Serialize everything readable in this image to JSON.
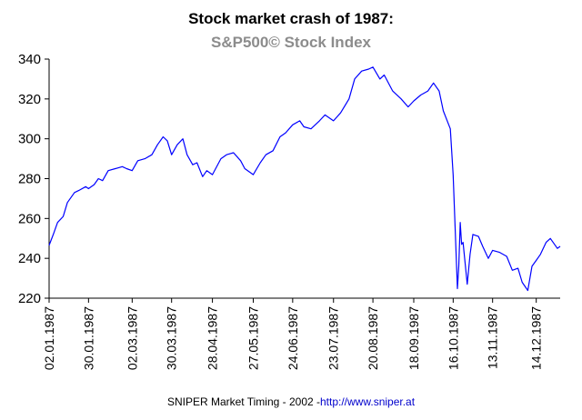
{
  "chart_data": {
    "type": "line",
    "title": "Stock market crash of 1987:",
    "subtitle": "S&P500© Stock Index",
    "xlabel": "",
    "ylabel": "",
    "ylim": [
      220,
      340
    ],
    "yticks": [
      220,
      240,
      260,
      280,
      300,
      320,
      340
    ],
    "xlim": [
      "1987-01-02",
      "1987-12-31"
    ],
    "xticks": [
      {
        "date": "1987-01-02",
        "label": "02.01.1987"
      },
      {
        "date": "1987-01-30",
        "label": "30.01.1987"
      },
      {
        "date": "1987-03-02",
        "label": "02.03.1987"
      },
      {
        "date": "1987-03-30",
        "label": "30.03.1987"
      },
      {
        "date": "1987-04-28",
        "label": "28.04.1987"
      },
      {
        "date": "1987-05-27",
        "label": "27.05.1987"
      },
      {
        "date": "1987-06-24",
        "label": "24.06.1987"
      },
      {
        "date": "1987-07-23",
        "label": "23.07.1987"
      },
      {
        "date": "1987-08-20",
        "label": "20.08.1987"
      },
      {
        "date": "1987-09-18",
        "label": "18.09.1987"
      },
      {
        "date": "1987-10-16",
        "label": "16.10.1987"
      },
      {
        "date": "1987-11-13",
        "label": "13.11.1987"
      },
      {
        "date": "1987-12-14",
        "label": "14.12.1987"
      }
    ],
    "grid": false,
    "legend": "none",
    "series": [
      {
        "color": "#0000ff",
        "x": [
          "1987-01-02",
          "1987-01-05",
          "1987-01-08",
          "1987-01-12",
          "1987-01-15",
          "1987-01-20",
          "1987-01-23",
          "1987-01-28",
          "1987-01-30",
          "1987-02-03",
          "1987-02-06",
          "1987-02-09",
          "1987-02-13",
          "1987-02-18",
          "1987-02-23",
          "1987-02-26",
          "1987-03-02",
          "1987-03-06",
          "1987-03-11",
          "1987-03-16",
          "1987-03-20",
          "1987-03-24",
          "1987-03-27",
          "1987-03-30",
          "1987-04-03",
          "1987-04-07",
          "1987-04-10",
          "1987-04-14",
          "1987-04-17",
          "1987-04-21",
          "1987-04-24",
          "1987-04-28",
          "1987-05-04",
          "1987-05-08",
          "1987-05-13",
          "1987-05-18",
          "1987-05-21",
          "1987-05-27",
          "1987-06-01",
          "1987-06-05",
          "1987-06-10",
          "1987-06-15",
          "1987-06-19",
          "1987-06-24",
          "1987-06-29",
          "1987-07-02",
          "1987-07-07",
          "1987-07-13",
          "1987-07-17",
          "1987-07-23",
          "1987-07-28",
          "1987-08-03",
          "1987-08-07",
          "1987-08-12",
          "1987-08-17",
          "1987-08-20",
          "1987-08-25",
          "1987-08-28",
          "1987-09-03",
          "1987-09-09",
          "1987-09-14",
          "1987-09-18",
          "1987-09-23",
          "1987-09-28",
          "1987-10-02",
          "1987-10-06",
          "1987-10-09",
          "1987-10-14",
          "1987-10-16",
          "1987-10-19",
          "1987-10-20",
          "1987-10-21",
          "1987-10-22",
          "1987-10-23",
          "1987-10-26",
          "1987-10-28",
          "1987-10-30",
          "1987-11-03",
          "1987-11-06",
          "1987-11-10",
          "1987-11-13",
          "1987-11-18",
          "1987-11-23",
          "1987-11-27",
          "1987-12-01",
          "1987-12-04",
          "1987-12-08",
          "1987-12-11",
          "1987-12-14",
          "1987-12-17",
          "1987-12-21",
          "1987-12-24",
          "1987-12-29",
          "1987-12-31"
        ],
        "y": [
          246.5,
          252,
          258,
          261,
          268,
          273,
          274,
          276,
          275,
          277,
          280,
          279,
          284,
          285,
          286,
          285,
          284,
          289,
          290,
          292,
          297,
          301,
          299,
          292,
          297,
          300,
          292,
          287,
          288,
          281,
          284,
          282,
          290,
          292,
          293,
          289,
          285,
          282,
          288,
          292,
          294,
          301,
          303,
          307,
          309,
          306,
          305,
          309,
          312,
          309,
          313,
          320,
          330,
          334,
          335,
          336,
          330,
          332,
          324,
          320,
          316,
          319,
          322,
          324,
          328,
          324,
          314,
          305,
          282,
          224.8,
          236,
          258,
          247,
          248,
          227,
          242,
          252,
          251,
          246,
          240,
          244,
          243,
          241,
          234,
          235,
          228,
          223.9,
          236,
          239,
          242,
          248,
          250,
          245,
          246
        ]
      }
    ]
  },
  "footer": {
    "text": "SNIPER Market Timing - 2002 - ",
    "link": "http://www.sniper.at"
  }
}
